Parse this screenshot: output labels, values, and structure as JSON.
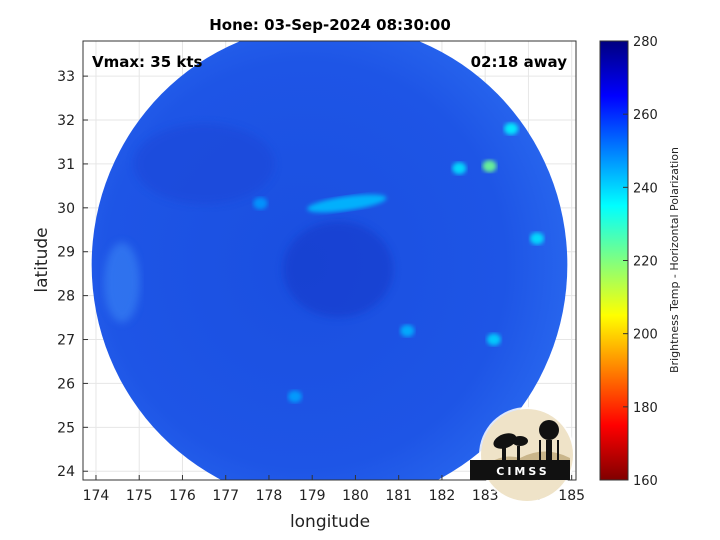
{
  "chart_data": {
    "type": "heatmap",
    "title": "Hone: 03-Sep-2024 08:30:00",
    "xlabel": "longitude",
    "ylabel": "latitude",
    "xlim": [
      173.7,
      185.1
    ],
    "ylim": [
      23.8,
      33.8
    ],
    "xticks": [
      174,
      175,
      176,
      177,
      178,
      179,
      180,
      181,
      182,
      183,
      184,
      185
    ],
    "yticks": [
      24,
      25,
      26,
      27,
      28,
      29,
      30,
      31,
      32,
      33
    ],
    "grid": true,
    "annotations": {
      "left": "Vmax: 35 kts",
      "right": "02:18 away"
    },
    "swath_center": [
      179.4,
      28.7
    ],
    "swath_radius_deg": 5.5,
    "colorbar": {
      "label": "Brightness Temp - Horizontal Polarization",
      "range": [
        160,
        280
      ],
      "ticks": [
        160,
        180,
        200,
        220,
        240,
        260,
        280
      ],
      "colormap": [
        "#800000",
        "#ff0000",
        "#ff8000",
        "#ffff00",
        "#80ff80",
        "#00ffff",
        "#0080ff",
        "#0000ff",
        "#000080"
      ]
    },
    "features": [
      {
        "name": "cloud band",
        "lon": 179.8,
        "lat": 30.1,
        "value": 243
      },
      {
        "name": "convective cell",
        "lon": 183.1,
        "lat": 30.95,
        "value": 222
      },
      {
        "name": "convective cell",
        "lon": 182.4,
        "lat": 30.9,
        "value": 238
      },
      {
        "name": "convective cell",
        "lon": 183.6,
        "lat": 31.8,
        "value": 236
      },
      {
        "name": "convective cell",
        "lon": 184.2,
        "lat": 29.3,
        "value": 238
      },
      {
        "name": "convective cell",
        "lon": 183.2,
        "lat": 27.0,
        "value": 240
      },
      {
        "name": "convective cell",
        "lon": 181.2,
        "lat": 27.2,
        "value": 244
      },
      {
        "name": "convective cell",
        "lon": 178.6,
        "lat": 25.7,
        "value": 246
      },
      {
        "name": "convective cell",
        "lon": 177.8,
        "lat": 30.1,
        "value": 247
      }
    ]
  },
  "logo": {
    "text": "CIMSS"
  }
}
